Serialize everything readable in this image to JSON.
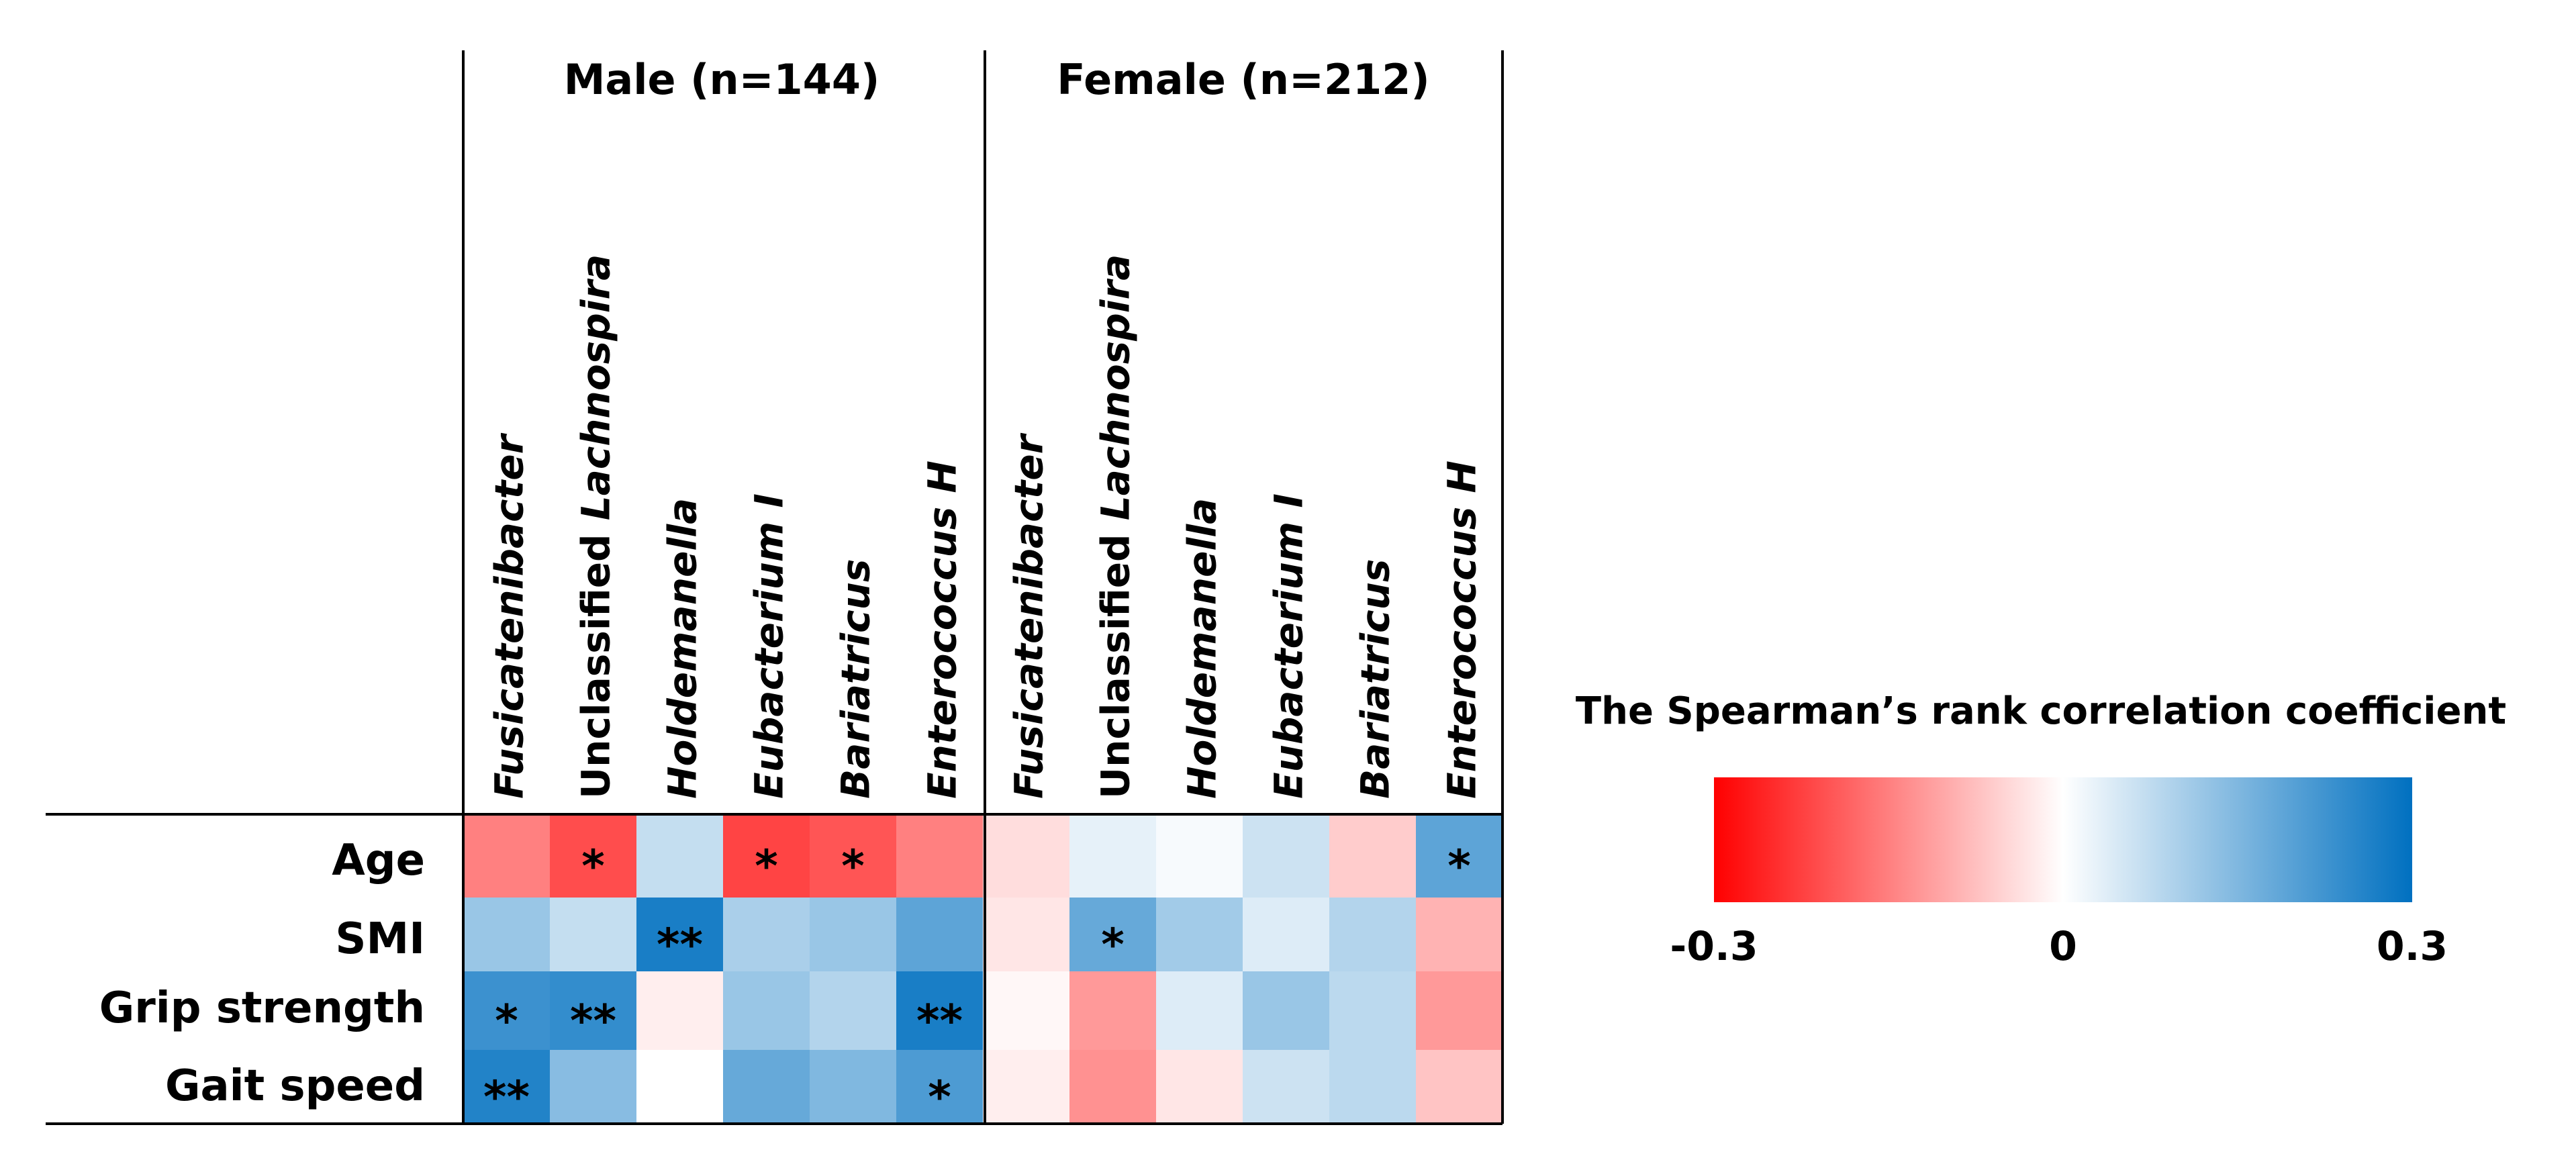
{
  "chart_data": {
    "type": "heatmap",
    "title": "",
    "groups": [
      {
        "label": "Male (n=144)",
        "columns": [
          [
            {
              "text": "Fusicatenibacter",
              "italic": true
            }
          ],
          [
            {
              "text": "Unclassified ",
              "italic": false
            },
            {
              "text": "Lachnospira",
              "italic": true
            }
          ],
          [
            {
              "text": "Holdemanella",
              "italic": true
            }
          ],
          [
            {
              "text": "Eubacterium I",
              "italic": true
            }
          ],
          [
            {
              "text": "Bariatricus",
              "italic": true
            }
          ],
          [
            {
              "text": "Enterococcus H",
              "italic": true
            }
          ]
        ]
      },
      {
        "label": "Female (n=212)",
        "columns": [
          [
            {
              "text": "Fusicatenibacter",
              "italic": true
            }
          ],
          [
            {
              "text": "Unclassified ",
              "italic": false
            },
            {
              "text": "Lachnospira",
              "italic": true
            }
          ],
          [
            {
              "text": "Holdemanella",
              "italic": true
            }
          ],
          [
            {
              "text": "Eubacterium I",
              "italic": true
            }
          ],
          [
            {
              "text": "Bariatricus",
              "italic": true
            }
          ],
          [
            {
              "text": "Enterococcus H",
              "italic": true
            }
          ]
        ]
      }
    ],
    "rows": [
      "Age",
      "SMI",
      "Grip strength",
      "Gait speed"
    ],
    "values": [
      [
        -0.15,
        -0.21,
        0.07,
        -0.22,
        -0.2,
        -0.15,
        -0.04,
        0.03,
        0.01,
        0.06,
        -0.06,
        0.19
      ],
      [
        0.12,
        0.07,
        0.27,
        0.1,
        0.12,
        0.19,
        -0.03,
        0.18,
        0.11,
        0.04,
        0.09,
        -0.09
      ],
      [
        0.23,
        0.24,
        -0.02,
        0.12,
        0.09,
        0.27,
        -0.01,
        -0.12,
        0.04,
        0.12,
        0.08,
        -0.12
      ],
      [
        0.26,
        0.14,
        0.0,
        0.18,
        0.15,
        0.21,
        -0.02,
        -0.13,
        -0.03,
        0.06,
        0.08,
        -0.07
      ]
    ],
    "significance": [
      [
        "",
        "*",
        "",
        "*",
        "*",
        "",
        "",
        "",
        "",
        "",
        "",
        "*"
      ],
      [
        "",
        "",
        "**",
        "",
        "",
        "",
        "",
        "*",
        "",
        "",
        "",
        ""
      ],
      [
        "*",
        "**",
        "",
        "",
        "",
        "**",
        "",
        "",
        "",
        "",
        "",
        ""
      ],
      [
        "**",
        "",
        "",
        "",
        "",
        "*",
        "",
        "",
        "",
        "",
        "",
        ""
      ]
    ],
    "colorbar": {
      "title": "The Spearman’s rank correlation coefficient",
      "min": -0.3,
      "max": 0.3,
      "tick_values": [
        -0.3,
        0,
        0.3
      ],
      "tick_labels": [
        "-0.3",
        "0",
        "0.3"
      ],
      "colors": {
        "low": "#ff0000",
        "mid": "#ffffff",
        "high": "#0070c0"
      }
    }
  }
}
